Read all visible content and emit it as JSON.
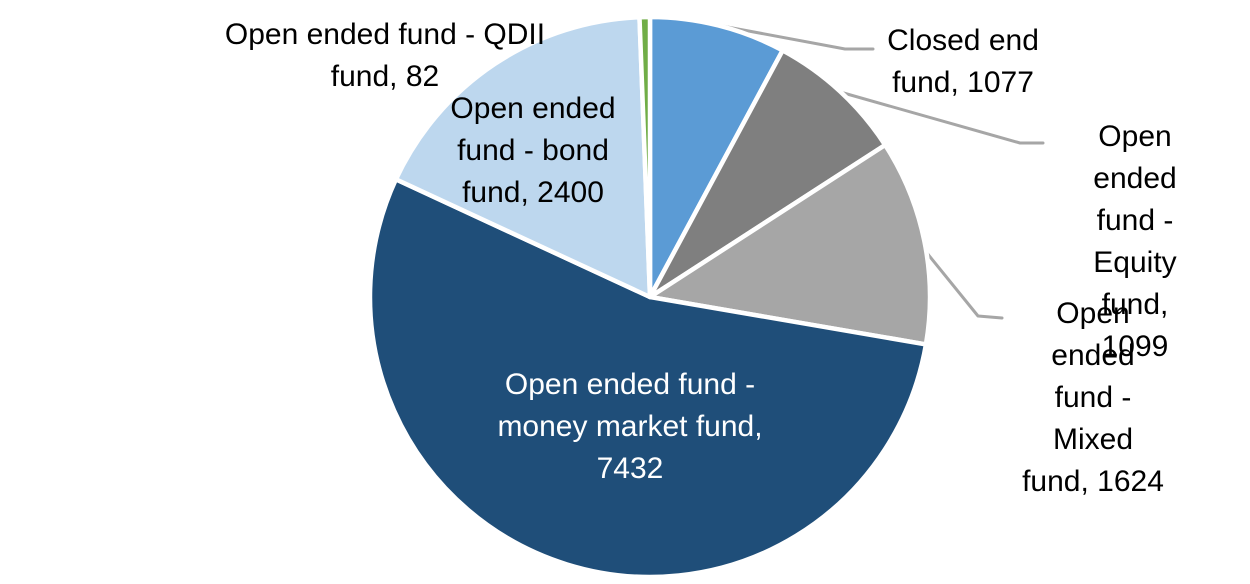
{
  "chart_data": {
    "type": "pie",
    "title": "",
    "legend": "none",
    "direction": "clockwise",
    "start_angle_deg": 0,
    "total": 13714,
    "background_color": "#FFFFFF",
    "slice_border_color": "#FFFFFF",
    "leader_line_color": "#A6A6A6",
    "label_text_color": "#000000",
    "inside_label_text_color": "#FFFFFF",
    "slices": [
      {
        "name": "Closed end fund",
        "value": 1077,
        "color": "#5B9BD5",
        "label_placement": "outside",
        "label": "Closed end\nfund, 1077"
      },
      {
        "name": "Open ended fund - Equity fund",
        "value": 1099,
        "color": "#7F7F7F",
        "label_placement": "outside",
        "label": "Open ended\nfund - Equity\nfund, 1099"
      },
      {
        "name": "Open ended fund - Mixed fund",
        "value": 1624,
        "color": "#A6A6A6",
        "label_placement": "outside",
        "label": "Open ended\nfund - Mixed\nfund, 1624"
      },
      {
        "name": "Open ended fund - money market fund",
        "value": 7432,
        "color": "#1F4E79",
        "label_placement": "inside",
        "label": "Open ended fund -\nmoney market fund,\n7432"
      },
      {
        "name": "Open ended fund - bond fund",
        "value": 2400,
        "color": "#BDD7EE",
        "label_placement": "inside",
        "label": "Open ended\nfund - bond\nfund, 2400"
      },
      {
        "name": "Open ended fund - QDII fund",
        "value": 82,
        "color": "#70AD47",
        "label_placement": "outside",
        "label": "Open ended fund - QDII\nfund, 82"
      }
    ]
  }
}
